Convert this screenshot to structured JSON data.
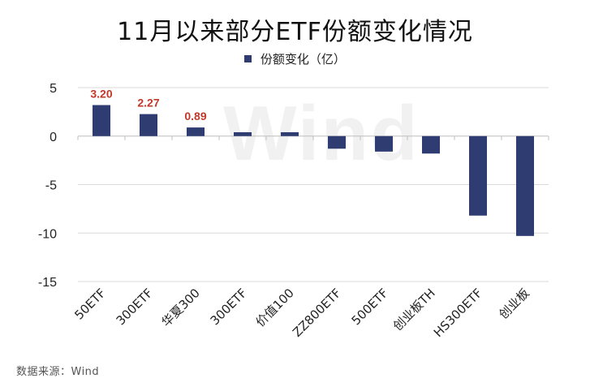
{
  "title": "11月以来部分ETF份额变化情况",
  "source": "数据来源：Wind",
  "watermark": "Wind",
  "chart_data": {
    "type": "bar",
    "categories": [
      "50ETF",
      "300ETF",
      "华夏300",
      "300ETF",
      "价值100",
      "ZZ800ETF",
      "500ETF",
      "创业板TH",
      "HS300ETF",
      "创业板"
    ],
    "series": [
      {
        "name": "份额变化（亿）",
        "values": [
          3.2,
          2.27,
          0.89,
          0.4,
          0.4,
          -1.3,
          -1.6,
          -1.8,
          -8.2,
          -10.3
        ],
        "data_labels": [
          "3.20",
          "2.27",
          "0.89",
          null,
          null,
          null,
          null,
          null,
          null,
          null
        ]
      }
    ],
    "ylim": [
      -15,
      5
    ],
    "yticks": [
      5,
      0,
      -5,
      -10,
      -15
    ],
    "grid": true,
    "legend_position": "top-center",
    "colors": {
      "bar": "#2e3c72",
      "data_label": "#c0392b"
    }
  }
}
